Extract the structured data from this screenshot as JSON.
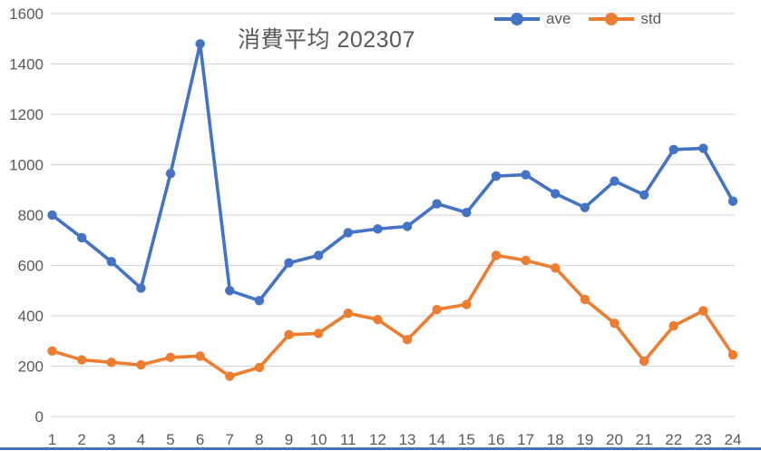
{
  "chart_data": {
    "type": "line",
    "title": "消費平均 202307",
    "categories": [
      "1",
      "2",
      "3",
      "4",
      "5",
      "6",
      "7",
      "8",
      "9",
      "10",
      "11",
      "12",
      "13",
      "14",
      "15",
      "16",
      "17",
      "18",
      "19",
      "20",
      "21",
      "22",
      "23",
      "24"
    ],
    "series": [
      {
        "name": "ave",
        "color": "#4472C4",
        "values": [
          800,
          710,
          615,
          510,
          965,
          1480,
          500,
          460,
          610,
          640,
          730,
          745,
          755,
          845,
          810,
          955,
          960,
          885,
          830,
          935,
          880,
          1060,
          1065,
          855
        ]
      },
      {
        "name": "std",
        "color": "#ED7D31",
        "values": [
          260,
          225,
          215,
          205,
          235,
          240,
          160,
          195,
          325,
          330,
          410,
          385,
          305,
          425,
          445,
          640,
          620,
          590,
          465,
          370,
          220,
          360,
          420,
          245
        ]
      }
    ],
    "xlabel": "",
    "ylabel": "",
    "ylim": [
      0,
      1600
    ],
    "y_ticks": [
      0,
      200,
      400,
      600,
      800,
      1000,
      1200,
      1400,
      1600
    ],
    "grid": true,
    "legend_position": "top-right"
  },
  "colors": {
    "gridline": "#D9D9D9",
    "axis_text": "#595959",
    "title_text": "#595959",
    "window_edge": "#4472C4"
  }
}
